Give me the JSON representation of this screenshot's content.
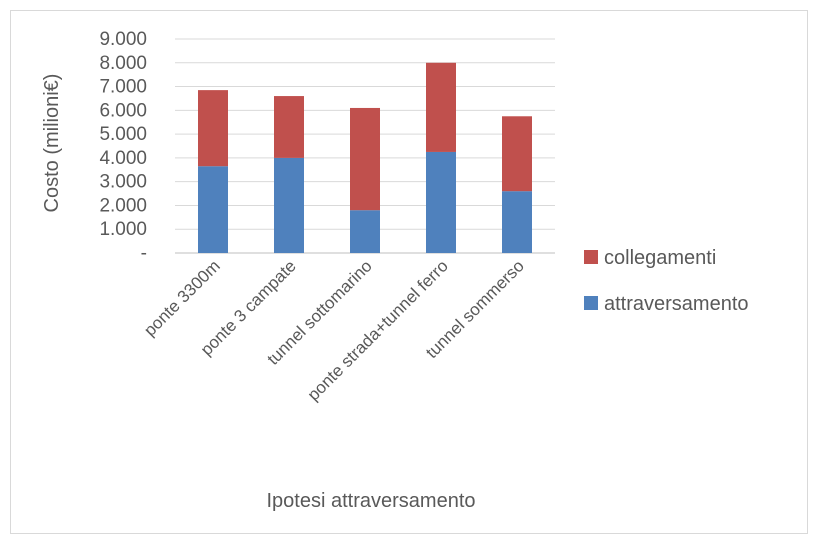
{
  "chart_data": {
    "type": "bar",
    "stacked": true,
    "title": "",
    "xlabel": "Ipotesi attraversamento",
    "ylabel": "Costo (milioni€)",
    "ylim": [
      0,
      9000
    ],
    "yticks": [
      0,
      1000,
      2000,
      3000,
      4000,
      5000,
      6000,
      7000,
      8000,
      9000
    ],
    "ytick_labels": [
      "-",
      "1.000",
      "2.000",
      "3.000",
      "4.000",
      "5.000",
      "6.000",
      "7.000",
      "8.000",
      "9.000"
    ],
    "grid": true,
    "legend_position": "right",
    "categories": [
      "ponte 3300m",
      "ponte 3 campate",
      "tunnel sottomarino",
      "ponte strada+tunnel ferro",
      "tunnel sommerso"
    ],
    "series": [
      {
        "name": "attraversamento",
        "color": "#4f81bd",
        "values": [
          3650,
          4000,
          1800,
          4250,
          2600
        ]
      },
      {
        "name": "collegamenti",
        "color": "#c0504d",
        "values": [
          3200,
          2600,
          4300,
          3750,
          3150
        ]
      }
    ]
  }
}
